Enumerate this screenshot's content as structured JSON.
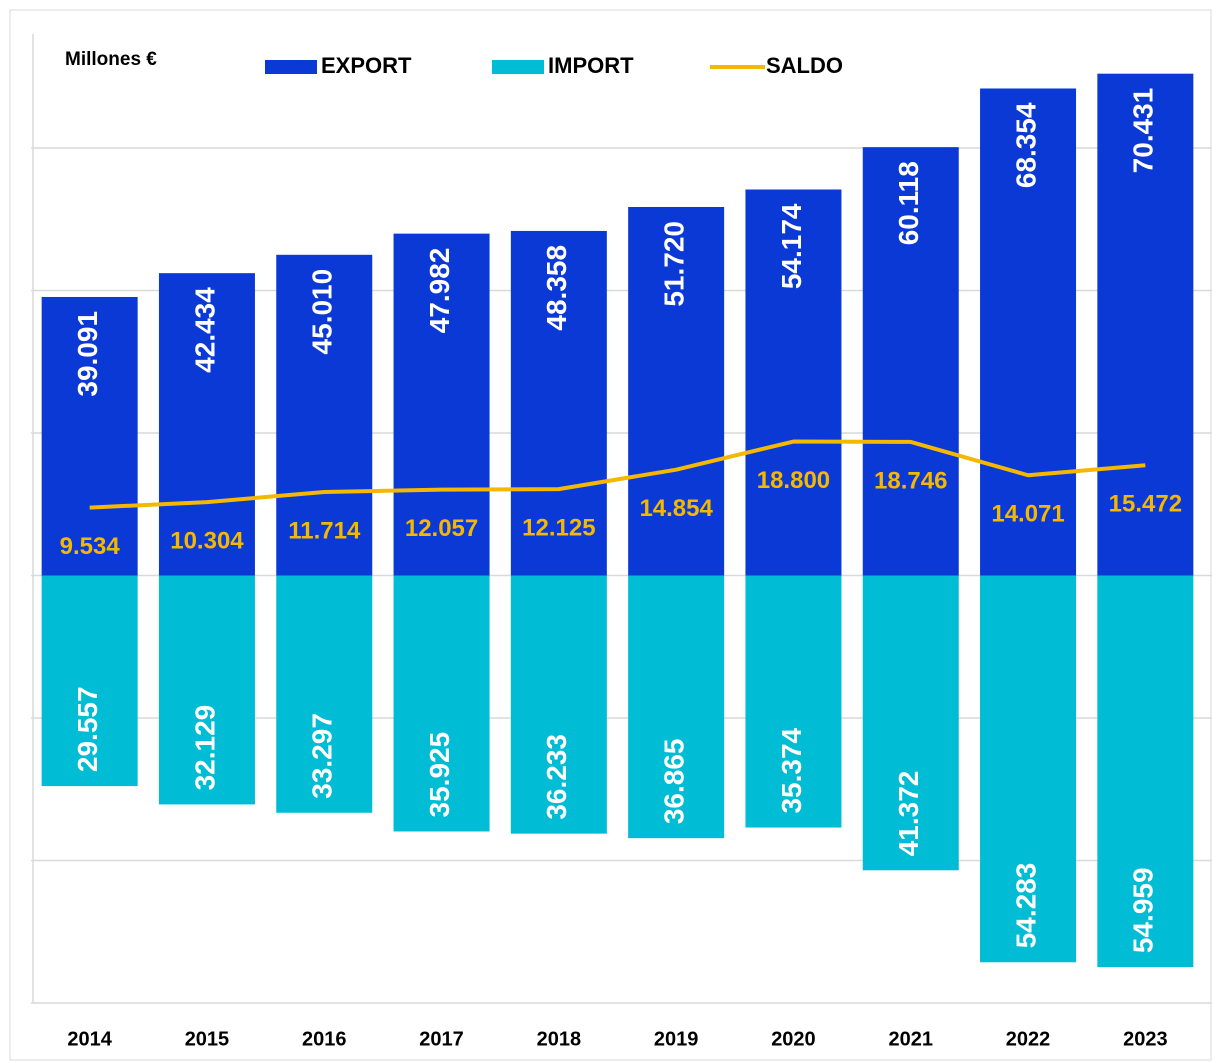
{
  "chart_data": {
    "type": "bar",
    "y_unit_label": "Millones €",
    "categories": [
      "2014",
      "2015",
      "2016",
      "2017",
      "2018",
      "2019",
      "2020",
      "2021",
      "2022",
      "2023"
    ],
    "series": [
      {
        "name": "EXPORT",
        "color": "#0b39d6",
        "type": "bar",
        "values": [
          39091,
          42434,
          45010,
          47982,
          48358,
          51720,
          54174,
          60118,
          68354,
          70431
        ],
        "value_labels": [
          "39.091",
          "42.434",
          "45.010",
          "47.982",
          "48.358",
          "51.720",
          "54.174",
          "60.118",
          "68.354",
          "70.431"
        ]
      },
      {
        "name": "IMPORT",
        "color": "#00bcd4",
        "type": "bar",
        "values": [
          -29557,
          -32129,
          -33297,
          -35925,
          -36233,
          -36865,
          -35374,
          -41372,
          -54283,
          -54959
        ],
        "value_labels": [
          "29.557",
          "32.129",
          "33.297",
          "35.925",
          "36.233",
          "36.865",
          "35.374",
          "41.372",
          "54.283",
          "54.959"
        ]
      },
      {
        "name": "SALDO",
        "color": "#f5b800",
        "type": "line",
        "values": [
          9534,
          10304,
          11714,
          12057,
          12125,
          14854,
          18800,
          18746,
          14071,
          15472
        ],
        "value_labels": [
          "9.534",
          "10.304",
          "11.714",
          "12.057",
          "12.125",
          "14.854",
          "18.800",
          "18.746",
          "14.071",
          "15.472"
        ]
      }
    ],
    "ylim": [
      -60000,
      76000
    ],
    "yticks": [
      -60000,
      -40000,
      -20000,
      0,
      20000,
      40000,
      60000
    ],
    "grid": true
  }
}
